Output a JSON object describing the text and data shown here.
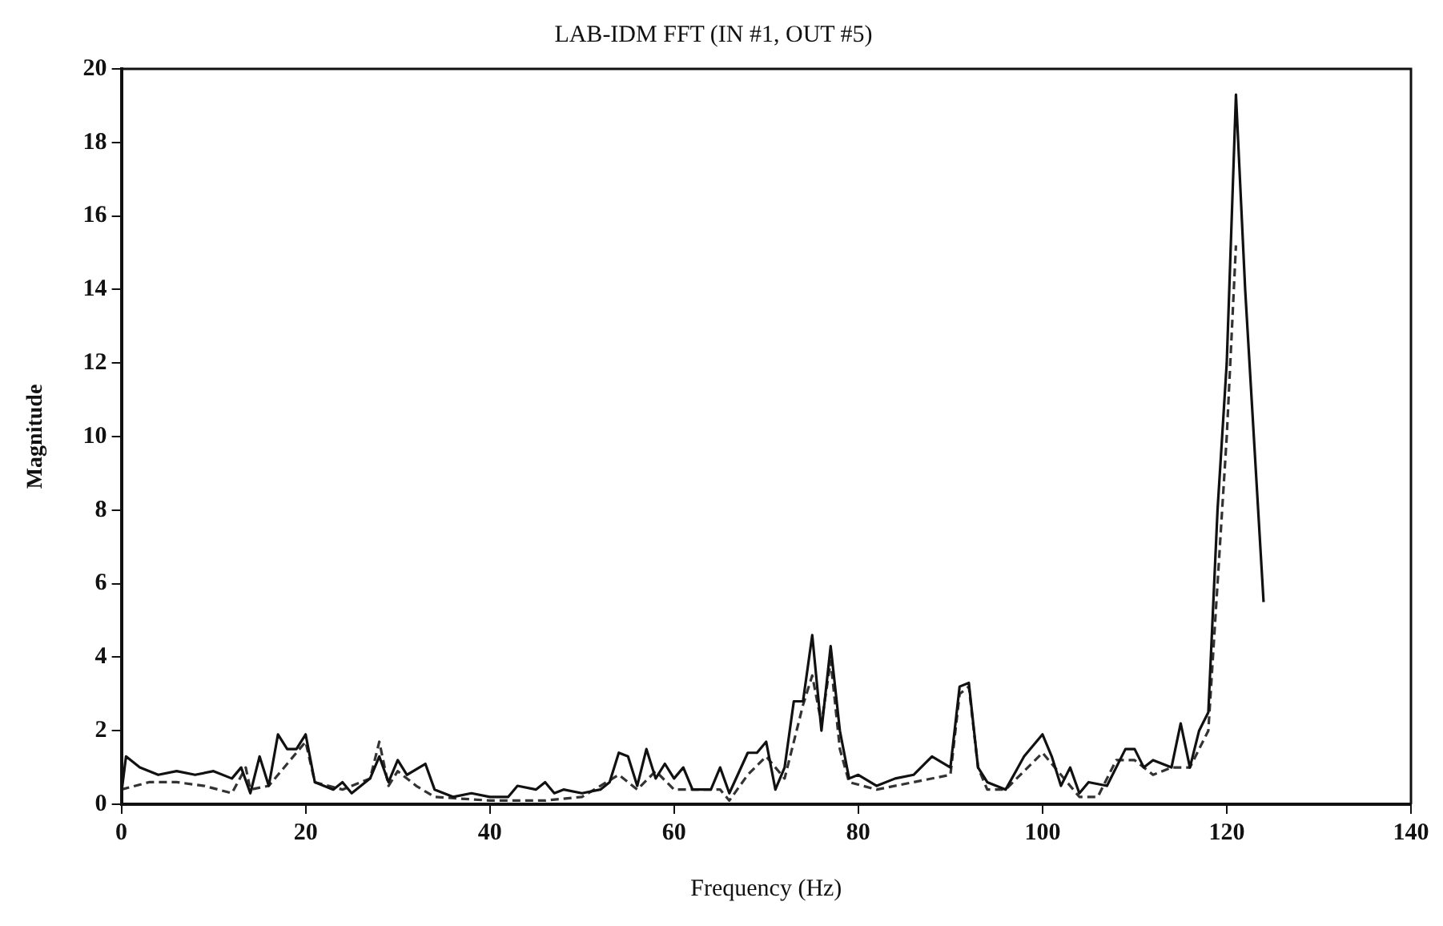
{
  "chart_data": {
    "type": "line",
    "title": "LAB-IDM FFT (IN #1, OUT #5)",
    "xlabel": "Frequency (Hz)",
    "ylabel": "Magnitude",
    "xlim": [
      0,
      140
    ],
    "xticks": [
      0,
      20,
      40,
      60,
      80,
      100,
      120,
      140
    ],
    "ylim": [
      0,
      20
    ],
    "yticks": [
      0,
      2,
      4,
      6,
      8,
      10,
      12,
      14,
      16,
      18,
      20
    ],
    "grid": false,
    "legend": false,
    "marker": "none",
    "series": [
      {
        "color": "#111111",
        "line_style": "solid",
        "x": [
          0,
          0.5,
          2,
          4,
          6,
          8,
          10,
          12,
          13,
          14,
          15,
          16,
          17,
          18,
          19,
          20,
          21,
          23,
          24,
          25,
          27,
          28,
          29,
          30,
          31,
          33,
          34,
          36,
          38,
          40,
          42,
          43,
          45,
          46,
          47,
          48,
          50,
          52,
          53,
          54,
          55,
          56,
          57,
          58,
          59,
          60,
          61,
          62,
          64,
          65,
          66,
          68,
          69,
          70,
          71,
          72,
          73,
          74,
          75,
          76,
          77,
          78,
          79,
          80,
          82,
          84,
          86,
          88,
          90,
          91,
          92,
          93,
          94,
          96,
          98,
          100,
          101,
          102,
          103,
          104,
          105,
          107,
          109,
          110,
          111,
          112,
          114,
          115,
          116,
          117,
          118,
          119,
          120,
          121,
          122,
          124
        ],
        "values": [
          0.3,
          1.3,
          1.0,
          0.8,
          0.9,
          0.8,
          0.9,
          0.7,
          1.0,
          0.3,
          1.3,
          0.5,
          1.9,
          1.5,
          1.5,
          1.9,
          0.6,
          0.4,
          0.6,
          0.3,
          0.7,
          1.3,
          0.6,
          1.2,
          0.8,
          1.1,
          0.4,
          0.2,
          0.3,
          0.2,
          0.2,
          0.5,
          0.4,
          0.6,
          0.3,
          0.4,
          0.3,
          0.4,
          0.6,
          1.4,
          1.3,
          0.5,
          1.5,
          0.7,
          1.1,
          0.7,
          1.0,
          0.4,
          0.4,
          1.0,
          0.3,
          1.4,
          1.4,
          1.7,
          0.4,
          1.0,
          2.8,
          2.8,
          4.6,
          2.0,
          4.3,
          2.0,
          0.7,
          0.8,
          0.5,
          0.7,
          0.8,
          1.3,
          1.0,
          3.2,
          3.3,
          1.0,
          0.6,
          0.4,
          1.3,
          1.9,
          1.3,
          0.5,
          1.0,
          0.3,
          0.6,
          0.5,
          1.5,
          1.5,
          1.0,
          1.2,
          1.0,
          2.2,
          1.0,
          2.0,
          2.5,
          8.0,
          12.0,
          19.3,
          14.0,
          5.5
        ]
      },
      {
        "color": "#333333",
        "line_style": "dashed",
        "x": [
          0,
          3,
          6,
          9,
          12,
          13.5,
          14,
          16,
          18,
          20,
          21,
          24,
          27,
          28,
          29,
          30,
          32,
          34,
          40,
          46,
          50,
          54,
          56,
          58,
          60,
          62,
          65,
          66,
          68,
          70,
          72,
          74,
          75,
          76,
          77,
          78,
          79,
          82,
          86,
          90,
          91,
          92,
          93,
          94,
          96,
          98,
          100,
          102,
          104,
          106,
          108,
          110,
          112,
          114,
          116,
          118,
          119,
          120,
          121
        ],
        "values": [
          0.4,
          0.6,
          0.6,
          0.5,
          0.3,
          1.0,
          0.4,
          0.5,
          1.1,
          1.7,
          0.6,
          0.4,
          0.7,
          1.7,
          0.5,
          0.9,
          0.5,
          0.2,
          0.1,
          0.1,
          0.2,
          0.8,
          0.4,
          0.9,
          0.4,
          0.4,
          0.4,
          0.1,
          0.8,
          1.3,
          0.7,
          2.7,
          3.5,
          2.2,
          3.9,
          1.5,
          0.6,
          0.4,
          0.6,
          0.8,
          3.0,
          3.2,
          1.0,
          0.4,
          0.4,
          0.9,
          1.4,
          0.8,
          0.2,
          0.2,
          1.2,
          1.2,
          0.8,
          1.0,
          1.0,
          2.0,
          6.0,
          10.0,
          15.2
        ]
      }
    ]
  }
}
